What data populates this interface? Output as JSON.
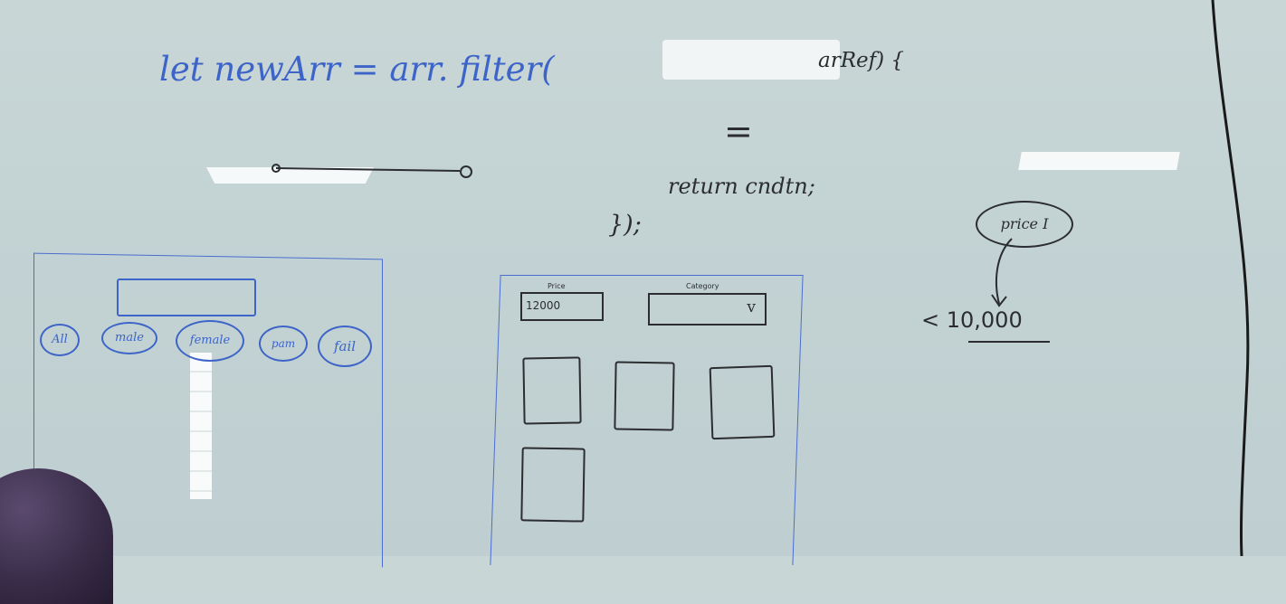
{
  "code": {
    "line1": "let newArr = arr. filter(",
    "line1_tail": "arRef) {",
    "equals": "=",
    "line2": "return cndtn;",
    "close": "});"
  },
  "wireframe_left": {
    "tags": [
      "All",
      "male",
      "female",
      "pam",
      "fail"
    ]
  },
  "wireframe_right": {
    "price_label": "Price",
    "price_value": "12000",
    "category_label": "Category",
    "dropdown_glyph": "v"
  },
  "annotation": {
    "bubble_text": "price I",
    "condition": "< 10,000"
  },
  "colors": {
    "blue_marker": "#3d64c8",
    "black_marker": "#2b2d30",
    "board": "#c5d4d5"
  }
}
